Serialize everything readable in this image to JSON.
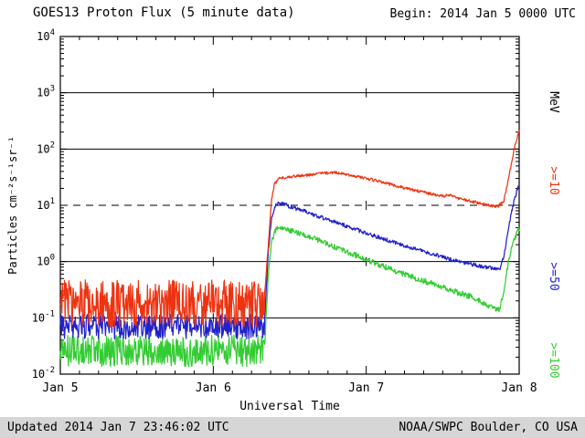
{
  "header": {
    "title": "GOES13 Proton Flux (5 minute data)",
    "begin_label": "Begin: 2014 Jan 5 0000 UTC"
  },
  "footer": {
    "updated": "Updated 2014 Jan  7 23:46:02 UTC",
    "source": "NOAA/SWPC Boulder, CO USA"
  },
  "axes": {
    "x_label": "Universal Time",
    "x_ticks": [
      "Jan 5",
      "Jan 6",
      "Jan 7",
      "Jan 8"
    ],
    "y_label": "Particles cm⁻²s⁻¹sr⁻¹",
    "y_decades": [
      4,
      3,
      2,
      1,
      0,
      -1,
      -2
    ],
    "threshold_decade": 1
  },
  "right_labels": [
    {
      "text": "MeV",
      "color": "#000000"
    },
    {
      "text": ">=10",
      "color": "#ee3311"
    },
    {
      "text": ">=50",
      "color": "#2222cc"
    },
    {
      "text": ">=100",
      "color": "#33cc33"
    }
  ],
  "chart_data": {
    "type": "line",
    "title": "GOES13 Proton Flux (5 minute data)",
    "xlabel": "Universal Time",
    "ylabel": "Particles cm^-2 s^-1 sr^-1",
    "x_range_days": 3,
    "x_start": "2014 Jan 5 0000 UTC",
    "y_log_range": [
      -2,
      4
    ],
    "threshold_line_flux": 10,
    "grid": "horizontal-decades",
    "legend_position": "right-rotated",
    "series": [
      {
        "name": ">=10 MeV",
        "color": "#ee3311",
        "background": {
          "until_day": 1.335,
          "base": 0.18,
          "noise_dex": 0.42,
          "seed": 7
        },
        "event_noise_dex": 0.025,
        "points": [
          [
            1.335,
            0.25
          ],
          [
            1.36,
            2
          ],
          [
            1.38,
            12
          ],
          [
            1.4,
            24
          ],
          [
            1.43,
            30
          ],
          [
            1.5,
            32
          ],
          [
            1.6,
            34
          ],
          [
            1.7,
            37
          ],
          [
            1.8,
            38
          ],
          [
            1.9,
            34
          ],
          [
            2.0,
            30
          ],
          [
            2.1,
            26
          ],
          [
            2.2,
            22
          ],
          [
            2.3,
            19
          ],
          [
            2.4,
            16.5
          ],
          [
            2.5,
            14.5
          ],
          [
            2.55,
            15.5
          ],
          [
            2.6,
            13.5
          ],
          [
            2.7,
            11.5
          ],
          [
            2.8,
            10
          ],
          [
            2.86,
            9.5
          ],
          [
            2.9,
            12
          ],
          [
            2.93,
            30
          ],
          [
            2.96,
            80
          ],
          [
            2.98,
            140
          ],
          [
            3.0,
            210
          ]
        ]
      },
      {
        "name": ">=50 MeV",
        "color": "#2222cc",
        "background": {
          "until_day": 1.335,
          "base": 0.07,
          "noise_dex": 0.22,
          "seed": 31
        },
        "event_noise_dex": 0.035,
        "points": [
          [
            1.335,
            0.09
          ],
          [
            1.36,
            1.5
          ],
          [
            1.38,
            6
          ],
          [
            1.41,
            10
          ],
          [
            1.43,
            11
          ],
          [
            1.47,
            10.5
          ],
          [
            1.5,
            9.5
          ],
          [
            1.6,
            7.8
          ],
          [
            1.7,
            6.2
          ],
          [
            1.8,
            5.0
          ],
          [
            1.9,
            4.0
          ],
          [
            2.0,
            3.2
          ],
          [
            2.1,
            2.6
          ],
          [
            2.2,
            2.1
          ],
          [
            2.3,
            1.75
          ],
          [
            2.4,
            1.45
          ],
          [
            2.5,
            1.2
          ],
          [
            2.6,
            1.0
          ],
          [
            2.7,
            0.88
          ],
          [
            2.8,
            0.78
          ],
          [
            2.87,
            0.72
          ],
          [
            2.9,
            1.2
          ],
          [
            2.93,
            4
          ],
          [
            2.96,
            10
          ],
          [
            2.98,
            16
          ],
          [
            3.0,
            24
          ]
        ]
      },
      {
        "name": ">=100 MeV",
        "color": "#33cc33",
        "background": {
          "until_day": 1.335,
          "base": 0.026,
          "noise_dex": 0.28,
          "seed": 53
        },
        "event_noise_dex": 0.05,
        "points": [
          [
            1.335,
            0.03
          ],
          [
            1.36,
            0.6
          ],
          [
            1.38,
            2.2
          ],
          [
            1.41,
            3.8
          ],
          [
            1.43,
            4.2
          ],
          [
            1.47,
            4.0
          ],
          [
            1.5,
            3.6
          ],
          [
            1.6,
            2.9
          ],
          [
            1.7,
            2.3
          ],
          [
            1.8,
            1.8
          ],
          [
            1.9,
            1.4
          ],
          [
            2.0,
            1.1
          ],
          [
            2.1,
            0.85
          ],
          [
            2.2,
            0.66
          ],
          [
            2.3,
            0.53
          ],
          [
            2.4,
            0.43
          ],
          [
            2.5,
            0.35
          ],
          [
            2.6,
            0.28
          ],
          [
            2.7,
            0.23
          ],
          [
            2.8,
            0.16
          ],
          [
            2.87,
            0.14
          ],
          [
            2.9,
            0.3
          ],
          [
            2.93,
            1.0
          ],
          [
            2.96,
            2.2
          ],
          [
            2.98,
            3.0
          ],
          [
            3.0,
            3.8
          ]
        ]
      }
    ]
  }
}
